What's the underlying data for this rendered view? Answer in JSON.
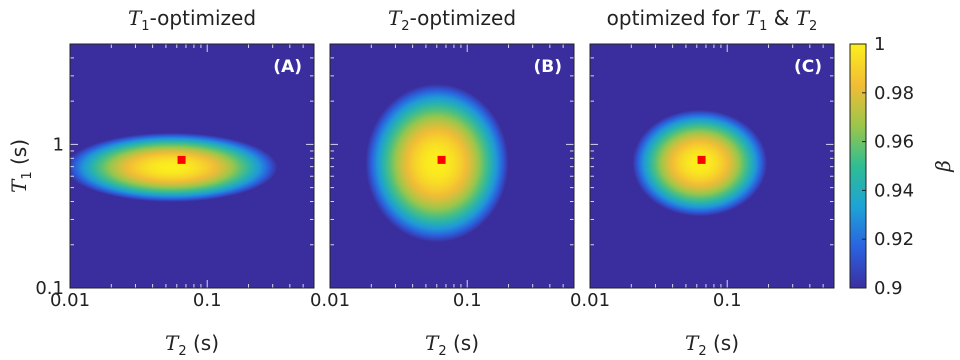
{
  "chart_data": [
    {
      "type": "heatmap",
      "title": "T1-optimized",
      "panel_label": "(A)",
      "xlabel": "T2 (s)",
      "ylabel": "T1 (s)",
      "xscale": "log",
      "yscale": "log",
      "xlim": [
        0.01,
        0.6
      ],
      "ylim": [
        0.1,
        5
      ],
      "xticks": [
        {
          "v": 0.01,
          "label": "0.01"
        },
        {
          "v": 0.1,
          "label": "0.1"
        }
      ],
      "yticks": [
        {
          "v": 0.1,
          "label": "0.1"
        },
        {
          "v": 1,
          "label": "1"
        }
      ],
      "optimum": {
        "T2": 0.065,
        "T1": 0.78
      },
      "peak": {
        "log_T2_center": -1.26,
        "log_T1_center": -0.16,
        "halfwidth_T2_decades": 0.77,
        "halfwidth_T1_decades": 0.24
      },
      "contour_beta": 0.9
    },
    {
      "type": "heatmap",
      "title": "T2-optimized",
      "panel_label": "(B)",
      "xlabel": "T2 (s)",
      "ylabel": "",
      "xscale": "log",
      "yscale": "log",
      "xlim": [
        0.01,
        0.6
      ],
      "ylim": [
        0.1,
        5
      ],
      "xticks": [
        {
          "v": 0.01,
          "label": "0.01"
        },
        {
          "v": 0.1,
          "label": "0.1"
        }
      ],
      "yticks": [],
      "optimum": {
        "T2": 0.065,
        "T1": 0.78
      },
      "peak": {
        "log_T2_center": -1.22,
        "log_T1_center": -0.13,
        "halfwidth_T2_decades": 0.52,
        "halfwidth_T1_decades": 0.55
      },
      "contour_beta": 0.9
    },
    {
      "type": "heatmap",
      "title": "optimized for T1 & T2",
      "panel_label": "(C)",
      "xlabel": "T2 (s)",
      "ylabel": "",
      "xscale": "log",
      "yscale": "log",
      "xlim": [
        0.01,
        0.6
      ],
      "ylim": [
        0.1,
        5
      ],
      "xticks": [
        {
          "v": 0.01,
          "label": "0.01"
        },
        {
          "v": 0.1,
          "label": "0.1"
        }
      ],
      "yticks": [],
      "optimum": {
        "T2": 0.065,
        "T1": 0.78
      },
      "peak": {
        "log_T2_center": -1.2,
        "log_T1_center": -0.13,
        "halfwidth_T2_decades": 0.49,
        "halfwidth_T1_decades": 0.37
      },
      "contour_beta": 0.9
    }
  ],
  "colorbar": {
    "label": "β",
    "range": [
      0.9,
      1.0
    ],
    "ticks": [
      {
        "v": 1.0,
        "label": "1"
      },
      {
        "v": 0.98,
        "label": "0.98"
      },
      {
        "v": 0.96,
        "label": "0.96"
      },
      {
        "v": 0.94,
        "label": "0.94"
      },
      {
        "v": 0.92,
        "label": "0.92"
      },
      {
        "v": 0.9,
        "label": "0.9"
      }
    ],
    "colormap": [
      "#3b2fa0",
      "#2a62e0",
      "#1ea3d6",
      "#2fbd92",
      "#9cc64a",
      "#f3bc35",
      "#fbef1c"
    ]
  },
  "colors": {
    "background": "#3a2d9e",
    "optimum_marker": "#ff0000",
    "tick": "#d8d6f0"
  }
}
